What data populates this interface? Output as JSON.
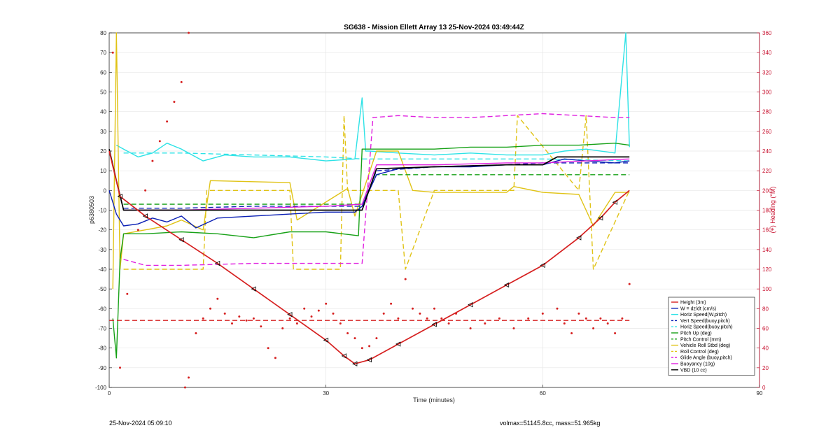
{
  "chart_data": {
    "type": "line",
    "title": "SG638 - Mission Ellett Array 13 25-Nov-2024 03:49:44Z",
    "xlabel": "Time (minutes)",
    "ylabel": "p6380503",
    "y2label": "(+) Heading (°M)",
    "xlim": [
      0,
      90
    ],
    "ylim": [
      -100,
      80
    ],
    "y2lim": [
      0,
      360
    ],
    "xticks": [
      0,
      30,
      60,
      90
    ],
    "yticks": [
      -100,
      -90,
      -80,
      -70,
      -60,
      -50,
      -40,
      -30,
      -20,
      -10,
      0,
      10,
      20,
      30,
      40,
      50,
      60,
      70,
      80
    ],
    "y2ticks": [
      0,
      20,
      40,
      60,
      80,
      100,
      120,
      140,
      160,
      180,
      200,
      220,
      240,
      260,
      280,
      300,
      320,
      340,
      360
    ],
    "grid": true,
    "legend_position": "bottom-right",
    "footer_left": "25-Nov-2024 05:09:10",
    "footer_right": "volmax=51145.8cc, mass=51.965kg",
    "colors": {
      "height": "#d62020",
      "w": "#0a1fb4",
      "horiz": "#2de2e6",
      "pitch": "#17a117",
      "roll": "#e0c316",
      "glide": "#e020e0",
      "vbd": "#000000",
      "heading": "#d62020"
    },
    "series": [
      {
        "name": "Height (3m)",
        "color": "#d62020",
        "dash": false,
        "x": [
          0,
          1.5,
          5,
          10,
          15,
          20,
          25,
          30,
          32.5,
          34,
          36,
          40,
          45,
          50,
          55,
          60,
          65,
          68,
          70,
          72
        ],
        "y": [
          20,
          -3,
          -13,
          -25,
          -37,
          -50,
          -63,
          -76,
          -84,
          -88,
          -86,
          -78,
          -68,
          -58,
          -48,
          -38,
          -24,
          -14,
          -6,
          0
        ]
      },
      {
        "name": "W = dz/dt (cm/s)",
        "color": "#0a1fb4",
        "dash": false,
        "x": [
          0,
          1,
          2,
          4,
          6,
          8,
          10,
          12,
          15,
          20,
          25,
          30,
          34,
          35,
          37,
          40,
          45,
          50,
          55,
          60,
          63,
          66,
          70,
          72
        ],
        "y": [
          0,
          -12,
          -18,
          -17,
          -14,
          -16,
          -13,
          -19,
          -14,
          -13,
          -12,
          -11,
          -11,
          -8,
          8,
          11,
          12,
          12,
          13,
          13,
          16,
          15,
          14,
          15
        ]
      },
      {
        "name": "Horiz Speed(W,pitch)",
        "color": "#2de2e6",
        "dash": false,
        "x": [
          1,
          2,
          4,
          6,
          8,
          10,
          13,
          16,
          20,
          25,
          30,
          34,
          35,
          35.5,
          36,
          40,
          45,
          50,
          55,
          60,
          63,
          66,
          70,
          71.5,
          72
        ],
        "y": [
          23,
          21,
          17,
          19,
          24,
          21,
          15,
          18,
          17,
          17,
          15,
          16,
          47,
          20,
          20,
          19,
          18,
          19,
          18,
          18,
          20,
          21,
          19,
          80,
          22
        ]
      },
      {
        "name": "Vert Speed(buoy,pitch)",
        "color": "#0a1fb4",
        "dash": true,
        "x": [
          2,
          10,
          20,
          30,
          35,
          37,
          45,
          55,
          60,
          72
        ],
        "y": [
          -9,
          -9,
          -8,
          -8,
          -8,
          10,
          12,
          13,
          14,
          14
        ]
      },
      {
        "name": "Horiz Speed(buoy,pitch)",
        "color": "#2de2e6",
        "dash": true,
        "x": [
          2,
          10,
          20,
          30,
          35,
          40,
          50,
          60,
          72
        ],
        "y": [
          19,
          19,
          18,
          17,
          16,
          16,
          16,
          16,
          15
        ]
      },
      {
        "name": "Pitch Up (deg)",
        "color": "#17a117",
        "dash": false,
        "x": [
          0.5,
          1,
          1.5,
          2,
          5,
          10,
          15,
          20,
          25,
          30,
          34.5,
          35,
          40,
          45,
          50,
          55,
          60,
          65,
          70,
          72
        ],
        "y": [
          -65,
          -85,
          -35,
          -22,
          -22,
          -21,
          -22,
          -24,
          -21,
          -21,
          -23,
          21,
          21,
          21,
          22,
          22,
          23,
          23,
          24,
          23
        ]
      },
      {
        "name": "Pitch Control (mm)",
        "color": "#17a117",
        "dash": true,
        "x": [
          2,
          35,
          37,
          72
        ],
        "y": [
          -7,
          -7,
          8,
          8
        ]
      },
      {
        "name": "Vehicle Roll Stbd (deg)",
        "color": "#e0c316",
        "dash": false,
        "x": [
          0.5,
          1,
          1.5,
          2,
          5,
          8,
          10,
          13,
          14,
          25,
          26,
          33,
          34,
          37,
          40,
          42,
          45,
          50,
          55,
          56,
          60,
          65,
          67,
          70,
          72
        ],
        "y": [
          -50,
          80,
          -40,
          -22,
          -20,
          -18,
          -15,
          -20,
          5,
          4,
          -15,
          1,
          -13,
          20,
          20,
          0,
          -1,
          -1,
          -1,
          2,
          -1,
          -2,
          -18,
          -1,
          -1
        ]
      },
      {
        "name": "Roll Control (deg)",
        "color": "#e0c316",
        "dash": true,
        "x": [
          2,
          13,
          13.5,
          16,
          20,
          25,
          25.5,
          32,
          32.5,
          33,
          37,
          40,
          41,
          45,
          50,
          56,
          56.5,
          65,
          66,
          67,
          72
        ],
        "y": [
          -40,
          -40,
          0,
          0,
          0,
          0,
          -40,
          -40,
          38,
          0,
          0,
          0,
          -40,
          0,
          0,
          0,
          38,
          0,
          38,
          -40,
          0
        ]
      },
      {
        "name": "Glide Angle (buoy,pitch)",
        "color": "#e020e0",
        "dash": true,
        "x": [
          2,
          5,
          10,
          20,
          30,
          35,
          36.5,
          40,
          45,
          50,
          55,
          60,
          65,
          70,
          72
        ],
        "y": [
          -35,
          -38,
          -38,
          -37,
          -37,
          -37,
          37,
          38,
          37,
          37,
          38,
          39,
          38,
          37,
          37
        ]
      },
      {
        "name": "Buoyancy (10g)",
        "color": "#e020e0",
        "dash": false,
        "x": [
          2,
          10,
          20,
          30,
          35,
          37,
          45,
          55,
          60,
          72
        ],
        "y": [
          -10,
          -10,
          -9,
          -8,
          -7,
          13,
          13,
          14,
          14,
          16
        ]
      },
      {
        "name": "VBD (10 cc)",
        "color": "#000000",
        "dash": false,
        "x": [
          0,
          1,
          2,
          10,
          20,
          30,
          35,
          37,
          45,
          55,
          60,
          62,
          72
        ],
        "y": [
          21,
          5,
          -10,
          -10,
          -10,
          -10,
          -10,
          11,
          12,
          13,
          13,
          17,
          17
        ]
      }
    ],
    "heading": {
      "name": "(+) Heading",
      "x": [
        0.5,
        1.5,
        2.5,
        4,
        5,
        6,
        7,
        8,
        9,
        10,
        11,
        10.5,
        11,
        12,
        13,
        14,
        15,
        16,
        17,
        18,
        19,
        20,
        21,
        22,
        23,
        24,
        25,
        26,
        27,
        28,
        29,
        30,
        31,
        32,
        33,
        34,
        35,
        36,
        37,
        38,
        39,
        40,
        41,
        42,
        43,
        44,
        45,
        46,
        47,
        48,
        50,
        52,
        54,
        56,
        58,
        60,
        62,
        63,
        64,
        65,
        66,
        67,
        68,
        69,
        70,
        71,
        72
      ],
      "y": [
        340,
        20,
        95,
        160,
        200,
        230,
        250,
        270,
        290,
        310,
        360,
        0,
        10,
        55,
        70,
        80,
        90,
        75,
        65,
        72,
        68,
        70,
        62,
        40,
        30,
        60,
        70,
        65,
        80,
        72,
        78,
        85,
        75,
        65,
        55,
        50,
        40,
        42,
        50,
        75,
        85,
        70,
        110,
        80,
        75,
        70,
        80,
        70,
        65,
        75,
        60,
        65,
        70,
        60,
        70,
        75,
        80,
        65,
        55,
        75,
        70,
        60,
        70,
        65,
        55,
        70,
        105
      ]
    },
    "heading_mean": 68
  }
}
